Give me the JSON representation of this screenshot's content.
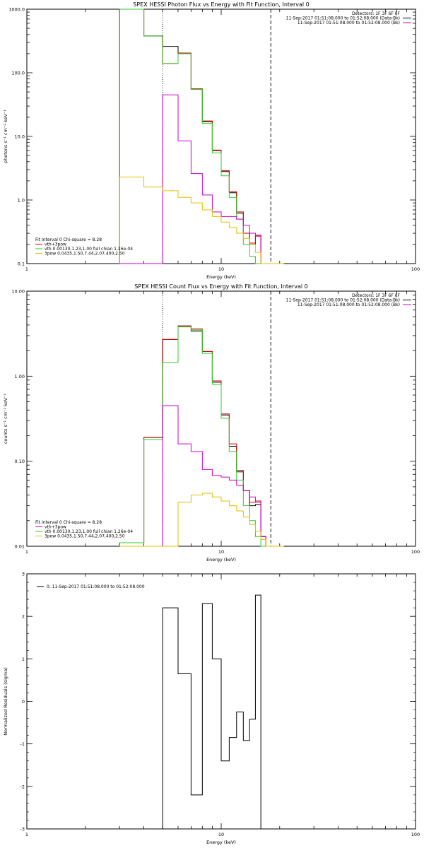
{
  "colors": {
    "black": "#000000",
    "red": "#d40000",
    "green": "#2ecc2e",
    "magenta": "#cc00cc",
    "gold": "#e0c000"
  },
  "chart_data": [
    {
      "type": "line",
      "title": "SPEX HESSI Photon Flux vs Energy with Fit Function, Interval 0",
      "xlabel": "Energy (keV)",
      "ylabel": "photons s⁻¹ cm⁻² keV⁻¹",
      "xscale": "log",
      "yscale": "log",
      "xlim": [
        1,
        100
      ],
      "ylim": [
        0.1,
        1000
      ],
      "xticks": [
        "1",
        "10",
        "100"
      ],
      "yticks": [
        "0.1",
        "1.0",
        "10.0",
        "100.0",
        "1000.0"
      ],
      "header": [
        "Detectors: 1F 3F 6F 8F",
        "11-Sep-2017 01:51:08.000 to 01:52:08.000 (Data-Bk)",
        "11-Sep-2017 01:51:08.000 to 01:52:08.000 (Bk)"
      ],
      "legend": [
        "Fit Interval 0   Chi-square = 8.28",
        "vth+3pow",
        "vth 0.00130,1.23,1.00  full chian 1.26e-04",
        "3pow 0.0435,1.50,7.44,2.07,400,2.50"
      ],
      "legend_colors": [
        "#000000",
        "#d40000",
        "#2ecc2e",
        "#e0c000"
      ],
      "vlines": [
        {
          "x": 5.0,
          "style": "dotted"
        },
        {
          "x": 18.0,
          "style": "dashed"
        }
      ],
      "bin_edges": [
        3,
        4,
        5,
        6,
        7,
        8,
        9,
        10,
        11,
        12,
        13,
        14,
        15,
        16,
        17,
        18,
        19,
        20,
        21
      ],
      "series": [
        {
          "color": "#000000",
          "values": [
            1000,
            380,
            260,
            200,
            55,
            17,
            6.0,
            2.8,
            1.3,
            0.62,
            0.3,
            0.2,
            0.27,
            0.1,
            0.1,
            0.1,
            0.1,
            0.1
          ]
        },
        {
          "color": "#d40000",
          "values": [
            1000,
            380,
            140,
            205,
            56,
            17.5,
            6.1,
            2.9,
            1.35,
            0.65,
            0.3,
            0.21,
            0.28,
            0.1,
            0.1,
            0.1,
            0.1,
            0.1
          ]
        },
        {
          "color": "#2ecc2e",
          "values": [
            1000,
            380,
            140,
            200,
            55,
            16,
            5.5,
            2.4,
            1.1,
            0.5,
            0.2,
            0.13,
            0.1,
            0.1,
            0.1,
            0.1,
            0.1,
            0.1
          ]
        },
        {
          "color": "#cc00cc",
          "values": [
            0.1,
            0.1,
            45,
            8.5,
            2.6,
            1.2,
            0.65,
            0.55,
            0.55,
            0.5,
            0.4,
            0.3,
            0.27,
            0.1,
            0.1,
            0.1,
            0.1,
            0.1
          ]
        },
        {
          "color": "#e0c000",
          "values": [
            2.3,
            1.6,
            1.4,
            1.1,
            0.9,
            0.7,
            0.55,
            0.45,
            0.37,
            0.3,
            0.25,
            0.2,
            0.15,
            0.1,
            0.1,
            0.1,
            0.1,
            0.1
          ]
        }
      ]
    },
    {
      "type": "line",
      "title": "SPEX HESSI Count Flux vs Energy with Fit Function, Interval 0",
      "xlabel": "Energy (keV)",
      "ylabel": "counts s⁻¹ cm⁻² keV⁻¹",
      "xscale": "log",
      "yscale": "log",
      "xlim": [
        1,
        100
      ],
      "ylim": [
        0.01,
        10
      ],
      "xticks": [
        "1",
        "10",
        "100"
      ],
      "yticks": [
        "0.01",
        "0.10",
        "1.00",
        "10.00"
      ],
      "header": [
        "Detectors: 1F 3F 6F 8F",
        "11-Sep-2017 01:51:08.000 to 01:52:08.000 (Data-Bk)",
        "11-Sep-2017 01:51:08.000 to 01:52:08.000 (Bk)"
      ],
      "legend": [
        "Fit Interval 0   Chi-square = 8.28",
        "vth+3pow",
        "vth 0.00130,1.23,1.00  full chian 1.26e-04",
        "3pow 0.0435,1.50,7.44,2.07,400,2.50"
      ],
      "legend_colors": [
        "#000000",
        "#cc00cc",
        "#2ecc2e",
        "#e0c000"
      ],
      "vlines": [
        {
          "x": 5.0,
          "style": "dotted"
        },
        {
          "x": 18.0,
          "style": "dashed"
        }
      ],
      "bin_edges": [
        3,
        4,
        5,
        6,
        7,
        8,
        9,
        10,
        11,
        12,
        13,
        14,
        15,
        16,
        17,
        18,
        19,
        20,
        21
      ],
      "series": [
        {
          "color": "#000000",
          "values": [
            0.011,
            0.19,
            2.7,
            3.9,
            3.4,
            1.95,
            0.85,
            0.35,
            0.15,
            0.075,
            0.045,
            0.03,
            0.031,
            0.013,
            0.01,
            0.01,
            0.01,
            0.01
          ]
        },
        {
          "color": "#d40000",
          "values": [
            0.011,
            0.19,
            2.7,
            3.9,
            3.6,
            1.95,
            0.88,
            0.36,
            0.16,
            0.078,
            0.045,
            0.033,
            0.034,
            0.013,
            0.01,
            0.01,
            0.01,
            0.01
          ]
        },
        {
          "color": "#2ecc2e",
          "values": [
            0.011,
            0.18,
            1.45,
            3.8,
            3.5,
            1.85,
            0.8,
            0.32,
            0.13,
            0.06,
            0.03,
            0.02,
            0.013,
            0.01,
            0.01,
            0.01,
            0.01,
            0.01
          ]
        },
        {
          "color": "#cc00cc",
          "values": [
            0.01,
            0.01,
            0.45,
            0.16,
            0.13,
            0.08,
            0.068,
            0.065,
            0.06,
            0.052,
            0.045,
            0.038,
            0.033,
            0.013,
            0.01,
            0.01,
            0.01,
            0.01
          ]
        },
        {
          "color": "#e0c000",
          "values": [
            0.01,
            0.01,
            0.01,
            0.033,
            0.04,
            0.042,
            0.038,
            0.034,
            0.03,
            0.026,
            0.022,
            0.018,
            0.015,
            0.012,
            0.01,
            0.01,
            0.01,
            0.01
          ]
        }
      ]
    },
    {
      "type": "line",
      "title": "",
      "xlabel": "Energy (keV)",
      "ylabel": "Normalized Residuals (sigma)",
      "xscale": "log",
      "yscale": "linear",
      "xlim": [
        1,
        100
      ],
      "ylim": [
        -3,
        3
      ],
      "xticks": [
        "1",
        "10",
        "100"
      ],
      "yticks": [
        "-3",
        "-2",
        "-1",
        "0",
        "1",
        "2",
        "3"
      ],
      "legend": [
        "0. 11-Sep-2017 01:51:08.000 to 01:52:08.000"
      ],
      "legend_colors": [
        "#000000"
      ],
      "bin_edges": [
        5,
        6,
        7,
        8,
        9,
        10,
        11,
        12,
        13,
        14,
        15,
        16,
        17,
        18
      ],
      "series": [
        {
          "color": "#000000",
          "values": [
            2.2,
            0.65,
            -2.2,
            2.3,
            1.0,
            -1.4,
            -0.85,
            -0.25,
            -0.92,
            -0.42,
            2.5,
            -3.0,
            -3.0
          ]
        }
      ]
    }
  ]
}
